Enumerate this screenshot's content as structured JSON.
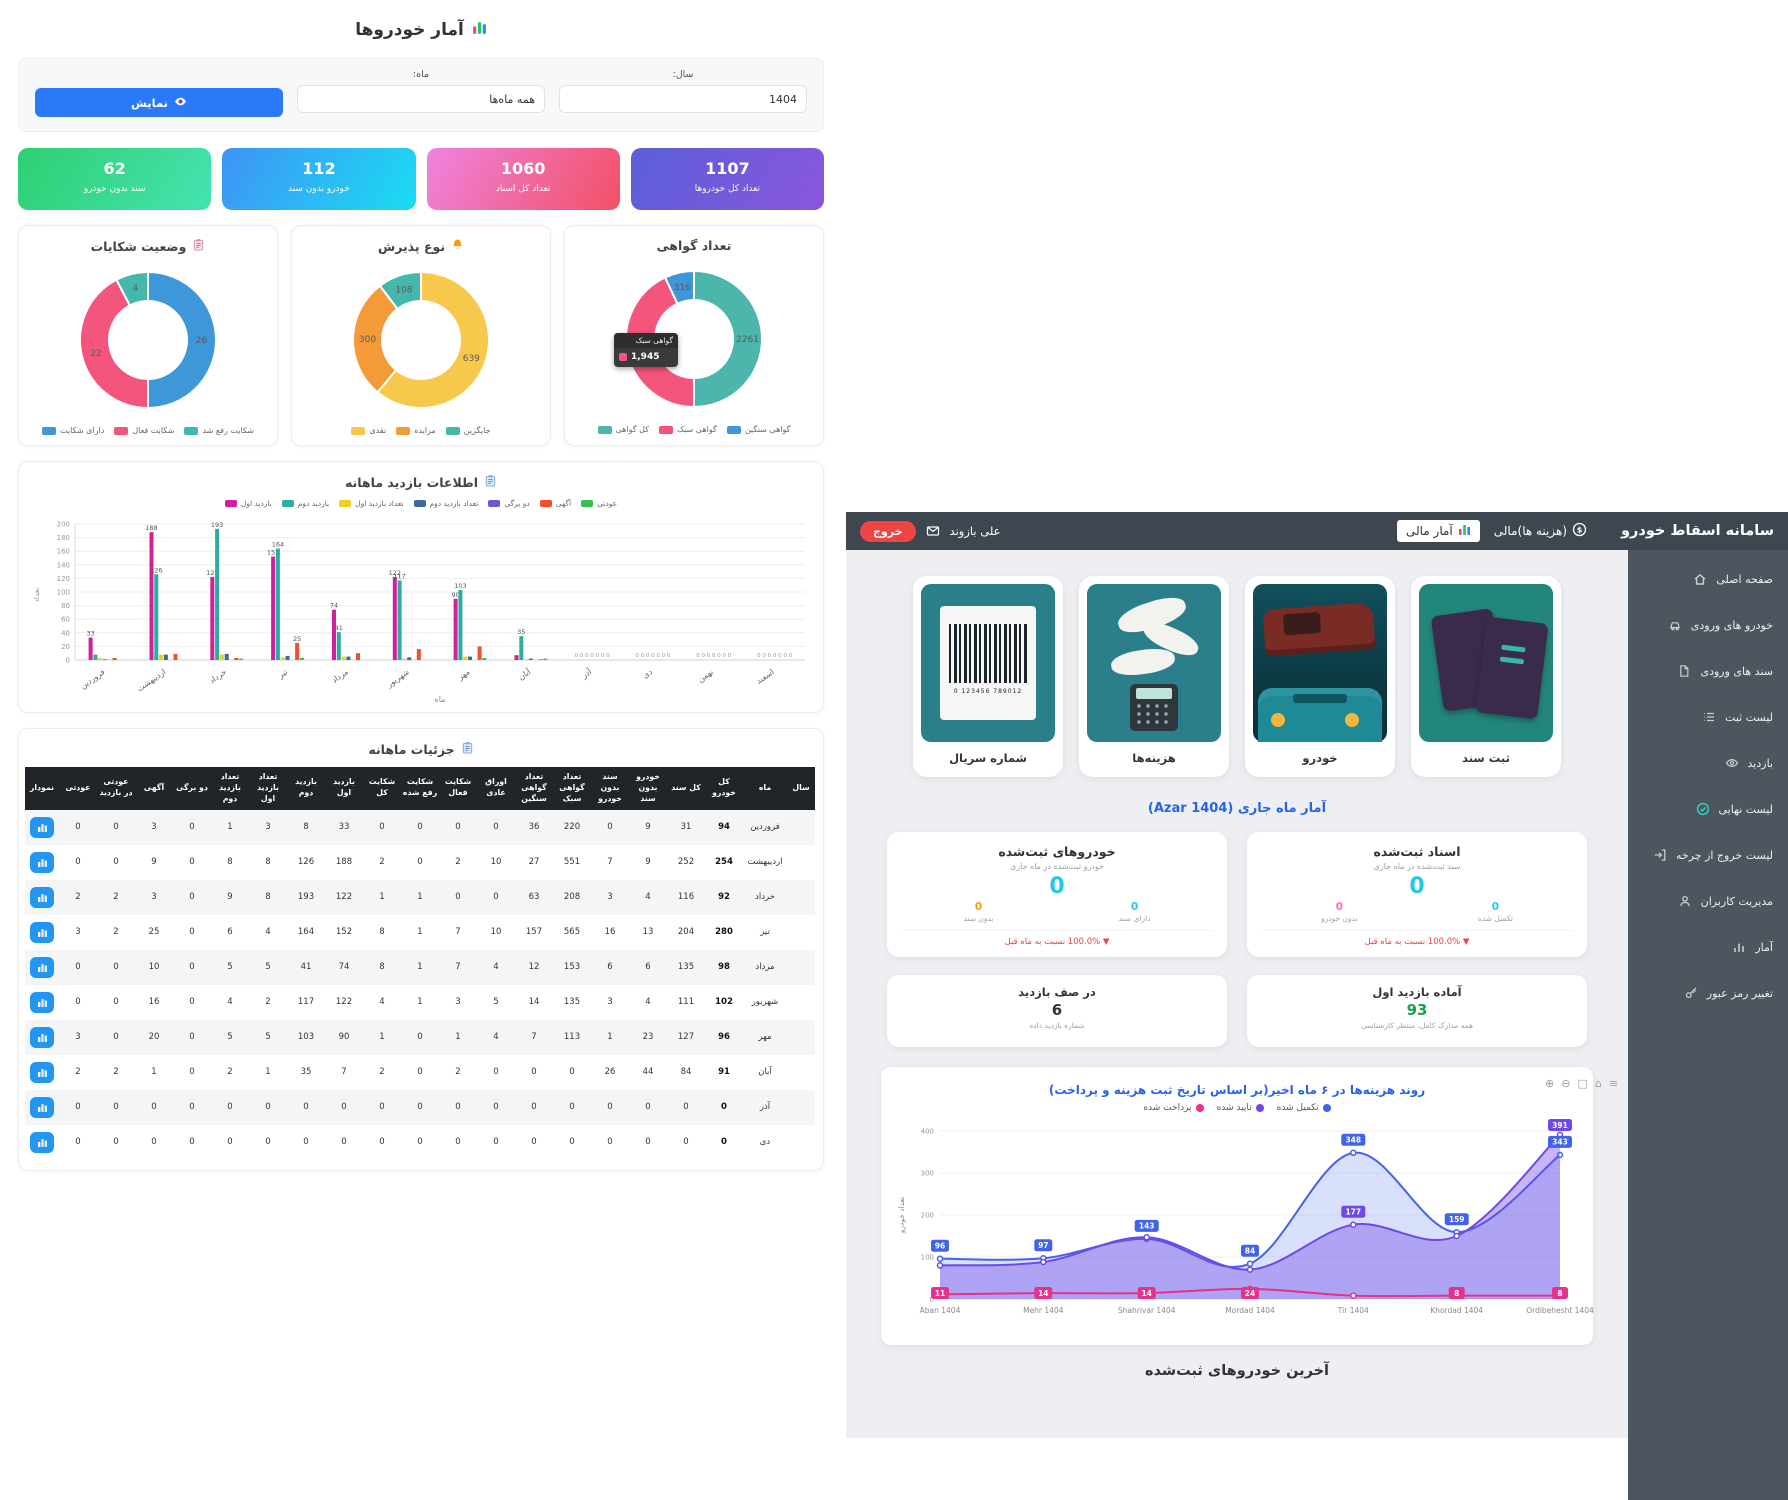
{
  "left_dashboard": {
    "title": "آمار خودروها",
    "filters": {
      "year_label": "سال:",
      "year_value": "1404",
      "month_label": "ماه:",
      "month_value": "همه ماه‌ها",
      "show_button_label": "نمایش"
    },
    "stat_cards": [
      {
        "value": "62",
        "label": "سند بدون خودرو",
        "from": "#2fcf72",
        "to": "#45e3b0"
      },
      {
        "value": "112",
        "label": "خودرو بدون سند",
        "from": "#3f93f5",
        "to": "#1bdcf2"
      },
      {
        "value": "1060",
        "label": "تعداد کل اسناد",
        "from": "#ef83e0",
        "to": "#f25064"
      },
      {
        "value": "1107",
        "label": "تعداد کل خودروها",
        "from": "#5a5fd8",
        "to": "#8a56dd"
      }
    ]
  },
  "chart_data": [
    {
      "id": "complaints-donut",
      "type": "pie",
      "title": "وضعیت شکایات",
      "labels": [
        "دارای شکایت",
        "شکایت فعال",
        "شکایت رفع شد"
      ],
      "values": [
        26,
        22,
        4
      ],
      "colors": [
        "#3e97d9",
        "#f4557c",
        "#45b8ac"
      ]
    },
    {
      "id": "admission-donut",
      "type": "pie",
      "title": "نوع پذیرش",
      "labels": [
        "نقدی",
        "مزایده",
        "جایگزین"
      ],
      "values": [
        639,
        300,
        108
      ],
      "colors": [
        "#f8c84d",
        "#f59a38",
        "#45b8ac"
      ]
    },
    {
      "id": "certificates-donut",
      "type": "pie",
      "title": "تعداد گواهی",
      "labels": [
        "کل گواهی",
        "گواهی سبک",
        "گواهی سنگین"
      ],
      "values": [
        2261,
        1945,
        316
      ],
      "colors": [
        "#4db6ac",
        "#f4557c",
        "#3e97d9"
      ],
      "tooltip": {
        "title": "گواهی سبک",
        "value": "1,945",
        "color": "#f4557c"
      }
    },
    {
      "id": "monthly-visits-bar",
      "type": "bar",
      "title": "اطلاعات بازدید ماهانه",
      "categories": [
        "فروردین",
        "اردیبهشت",
        "خرداد",
        "تیر",
        "مرداد",
        "شهریور",
        "مهر",
        "آبان",
        "آذر",
        "دی",
        "بهمن",
        "اسفند"
      ],
      "series": [
        {
          "name": "بازدید اول",
          "color": "#d21f9b",
          "values": [
            33,
            188,
            122,
            152,
            74,
            122,
            90,
            7,
            0,
            0,
            0,
            0
          ]
        },
        {
          "name": "بازدید دوم",
          "color": "#2aaf9f",
          "values": [
            8,
            126,
            193,
            164,
            41,
            117,
            103,
            35,
            0,
            0,
            0,
            0
          ]
        },
        {
          "name": "تعداد بازدید اول",
          "color": "#f2cf1f",
          "values": [
            3,
            8,
            8,
            4,
            5,
            2,
            5,
            1,
            0,
            0,
            0,
            0
          ]
        },
        {
          "name": "تعداد بازدید دوم",
          "color": "#3a6b9c",
          "values": [
            1,
            8,
            9,
            6,
            5,
            4,
            5,
            2,
            0,
            0,
            0,
            0
          ]
        },
        {
          "name": "دو برگی",
          "color": "#6b5bd2",
          "values": [
            0,
            0,
            0,
            0,
            0,
            0,
            0,
            0,
            0,
            0,
            0,
            0
          ]
        },
        {
          "name": "آگهی",
          "color": "#f1502a",
          "values": [
            3,
            9,
            3,
            25,
            10,
            16,
            20,
            1,
            0,
            0,
            0,
            0
          ]
        },
        {
          "name": "عودتی",
          "color": "#33c24d",
          "values": [
            0,
            0,
            2,
            3,
            0,
            0,
            3,
            2,
            0,
            0,
            0,
            0
          ]
        }
      ],
      "ylabel": "تعداد",
      "xlabel": "ماه",
      "ylim": [
        0,
        200
      ],
      "ytick_step": 20
    },
    {
      "id": "costs-line",
      "type": "line",
      "title": "روند هزینه‌ها در ۶ ماه اخیر(بر اساس تاریخ ثبت هزینه و پرداخت)",
      "categories": [
        "Aban 1404",
        "Mehr 1404",
        "Shahrivar 1404",
        "Mordad 1404",
        "Tir 1404",
        "Khordad 1404",
        "Ordibehesht 1404"
      ],
      "series": [
        {
          "name": "تکمیل شده",
          "color": "#4263eb",
          "fill": "rgba(66,99,235,0.20)",
          "values": [
            96,
            97,
            143,
            84,
            348,
            159,
            343
          ],
          "labeled": [
            0,
            1,
            2,
            3,
            4,
            5,
            6
          ]
        },
        {
          "name": "تایید شده",
          "color": "#7048e8",
          "fill": "rgba(112,72,232,0.40)",
          "values": [
            80,
            88,
            147,
            70,
            177,
            150,
            391
          ],
          "labeled": [
            4,
            6
          ]
        },
        {
          "name": "پرداخت شده",
          "color": "#e8318a",
          "fill": "none",
          "values": [
            11,
            14,
            14,
            24,
            8,
            8,
            8
          ],
          "labeled": [
            0,
            1,
            2,
            3,
            5,
            6
          ]
        }
      ],
      "ylabel": "تعداد خودرو",
      "ylim": [
        0,
        400
      ],
      "ytick_step": 100
    }
  ],
  "details_table": {
    "title": "جزئیات ماهانه",
    "columns": [
      "سال",
      "ماه",
      "کل خودرو",
      "کل سند",
      "خودرو بدون سند",
      "سند بدون خودرو",
      "تعداد گواهی سبک",
      "تعداد گواهی سنگین",
      "اوراق عادی",
      "شکایت فعال",
      "شکایت رفع شده",
      "شکایت کل",
      "بازدید اول",
      "بازدید دوم",
      "تعداد بازدید اول",
      "تعداد بازدید دوم",
      "دو برگی",
      "آگهی",
      "عودتی در بازدید",
      "عودتی",
      "نمودار"
    ],
    "rows": [
      [
        "",
        "فروردین",
        "94",
        "31",
        "9",
        "0",
        "220",
        "36",
        "0",
        "0",
        "0",
        "0",
        "33",
        "8",
        "3",
        "1",
        "0",
        "3",
        "0",
        "0"
      ],
      [
        "",
        "اردیبهشت",
        "254",
        "252",
        "9",
        "7",
        "551",
        "27",
        "10",
        "2",
        "0",
        "2",
        "188",
        "126",
        "8",
        "8",
        "0",
        "9",
        "0",
        "0"
      ],
      [
        "",
        "خرداد",
        "92",
        "116",
        "4",
        "3",
        "208",
        "63",
        "0",
        "0",
        "1",
        "1",
        "122",
        "193",
        "8",
        "9",
        "0",
        "3",
        "2",
        "2"
      ],
      [
        "",
        "تیر",
        "280",
        "204",
        "13",
        "16",
        "565",
        "157",
        "10",
        "7",
        "1",
        "8",
        "152",
        "164",
        "4",
        "6",
        "0",
        "25",
        "2",
        "3"
      ],
      [
        "",
        "مرداد",
        "98",
        "135",
        "6",
        "6",
        "153",
        "12",
        "4",
        "7",
        "1",
        "8",
        "74",
        "41",
        "5",
        "5",
        "0",
        "10",
        "0",
        "0"
      ],
      [
        "",
        "شهریور",
        "102",
        "111",
        "4",
        "3",
        "135",
        "14",
        "5",
        "3",
        "1",
        "4",
        "122",
        "117",
        "2",
        "4",
        "0",
        "16",
        "0",
        "0"
      ],
      [
        "",
        "مهر",
        "96",
        "127",
        "23",
        "1",
        "113",
        "7",
        "4",
        "1",
        "0",
        "1",
        "90",
        "103",
        "5",
        "5",
        "0",
        "20",
        "0",
        "3"
      ],
      [
        "",
        "آبان",
        "91",
        "84",
        "44",
        "26",
        "0",
        "0",
        "0",
        "2",
        "0",
        "2",
        "7",
        "35",
        "1",
        "2",
        "0",
        "1",
        "2",
        "2"
      ],
      [
        "",
        "آذر",
        "0",
        "0",
        "0",
        "0",
        "0",
        "0",
        "0",
        "0",
        "0",
        "0",
        "0",
        "0",
        "0",
        "0",
        "0",
        "0",
        "0",
        "0"
      ],
      [
        "",
        "دی",
        "0",
        "0",
        "0",
        "0",
        "0",
        "0",
        "0",
        "0",
        "0",
        "0",
        "0",
        "0",
        "0",
        "0",
        "0",
        "0",
        "0",
        "0"
      ]
    ]
  },
  "right_dashboard": {
    "header": {
      "title": "سامانه اسقاط خودرو",
      "nav": [
        {
          "label": "(هزینه ها)مالی",
          "icon": "money-icon"
        },
        {
          "label": "آمار مالی",
          "icon": "chart-icon"
        }
      ],
      "user_name": "علی بازوند",
      "logout_label": "خروج"
    },
    "sidebar": {
      "items": [
        {
          "label": "صفحه اصلی",
          "icon": "home-icon"
        },
        {
          "label": "خودرو های ورودی",
          "icon": "car-icon"
        },
        {
          "label": "سند های ورودی",
          "icon": "document-icon"
        },
        {
          "label": "لیست ثبت",
          "icon": "list-icon"
        },
        {
          "label": "بازدید",
          "icon": "eye-icon"
        },
        {
          "label": "لیست نهایی",
          "icon": "check-icon"
        },
        {
          "label": "لیست خروج از چرخه",
          "icon": "exit-icon"
        },
        {
          "label": "مدیریت کاربران",
          "icon": "users-icon"
        },
        {
          "label": "آمار",
          "icon": "stats-icon"
        },
        {
          "label": "تغییر رمز عبور",
          "icon": "key-icon"
        }
      ]
    },
    "shortcut_cards": [
      {
        "label": "شماره سریال"
      },
      {
        "label": "هزینه‌ها"
      },
      {
        "label": "خودرو"
      },
      {
        "label": "ثبت سند"
      }
    ],
    "month_title": "آمار ماه جاری (Azar 1404)",
    "stat_cards": [
      {
        "title": "اسناد ثبت‌شده",
        "subtitle": "سند ثبت‌شده در ماه جاری",
        "value": "0",
        "minis": [
          {
            "value": "0",
            "label": "تکمیل شده",
            "color": "#22c8e6"
          },
          {
            "value": "0",
            "label": "بدون خودرو",
            "color": "#f472b6"
          }
        ],
        "delta": "100.0% نسبت به ماه قبل",
        "delta_arrow": "▼"
      },
      {
        "title": "خودروهای ثبت‌شده",
        "subtitle": "خودرو ثبت‌شده در ماه جاری",
        "value": "0",
        "minis": [
          {
            "value": "0",
            "label": "دارای سند",
            "color": "#22c8e6"
          },
          {
            "value": "0",
            "label": "بدون سند",
            "color": "#f59e0b"
          }
        ],
        "delta": "100.0% نسبت به ماه قبل",
        "delta_arrow": "▼"
      }
    ],
    "queue_cards": [
      {
        "title": "آماده بازدید اول",
        "value": "93",
        "subtitle": "همه مدارک کامل، منتظر کارشناسی",
        "value_color": "#16a34a"
      },
      {
        "title": "در صف بازدید",
        "value": "6",
        "subtitle": "شماره بازدید داده",
        "value_color": "#333333"
      }
    ],
    "chart_toolbar": [
      "zoom-in-icon",
      "zoom-out-icon",
      "selection-icon",
      "home-icon",
      "menu-icon"
    ],
    "latest_title": "آخرین خودروهای ثبت‌شده"
  }
}
